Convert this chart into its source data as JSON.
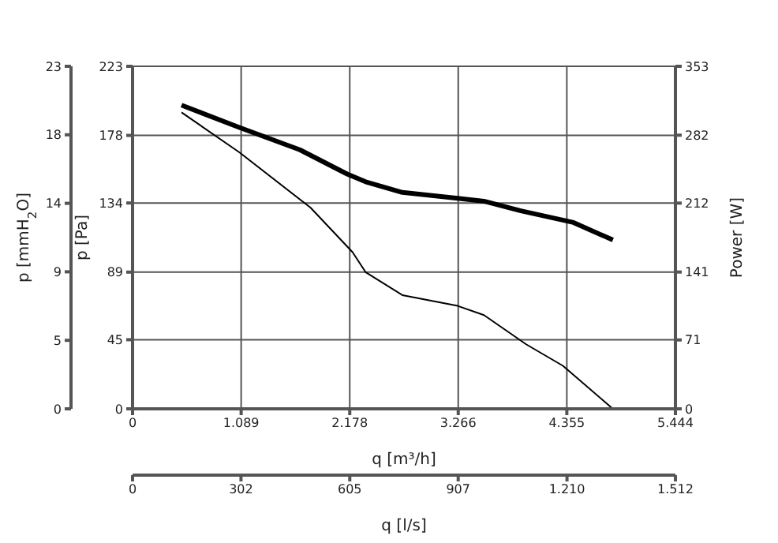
{
  "chart_data": {
    "type": "line",
    "xlabel": "q [m³/h]",
    "ylabel": "p [Pa]",
    "y2label": "p [mmH$_{2}$O]",
    "y3label": "Power [W]",
    "x2label": "q [l/s]",
    "xlim": [
      0,
      5444
    ],
    "xticks": [
      0,
      {
        "value": 1089,
        "label": "1.089"
      },
      {
        "value": 2178,
        "label": "2.178"
      },
      {
        "value": 3266,
        "label": "3.266"
      },
      {
        "value": 4355,
        "label": "4.355"
      },
      {
        "value": 5444,
        "label": "5.444"
      }
    ],
    "x2lim": [
      0,
      1512
    ],
    "x2ticks": [
      0,
      302,
      605,
      907,
      {
        "value": 1210,
        "label": "1.210"
      },
      {
        "value": 1512,
        "label": "1.512"
      }
    ],
    "ylim": [
      0,
      223
    ],
    "yticks": [
      0,
      45,
      89,
      134,
      178,
      223
    ],
    "y2lim": [
      0,
      23
    ],
    "y2ticks": [
      0,
      {
        "value": 4.6,
        "label": "5"
      },
      {
        "value": 9.2,
        "label": "9"
      },
      {
        "value": 13.8,
        "label": "14"
      },
      {
        "value": 18.4,
        "label": "18"
      },
      23
    ],
    "y3lim": [
      0,
      353
    ],
    "y3ticks": [
      0,
      71,
      141,
      212,
      282,
      353
    ],
    "grid": true,
    "legend": false,
    "marker": "none",
    "series": [
      {
        "color": "#000000",
        "x": [
          491,
          1071,
          1784,
          2206,
          2337,
          2706,
          3261,
          3524,
          3947,
          4316,
          4817
        ],
        "values": [
          193,
          167,
          131,
          102,
          89,
          74,
          67,
          61,
          42,
          28,
          0
        ]
      },
      {
        "color": "#000000",
        "axis": "y3",
        "x": [
          491,
          1071,
          1677,
          2152,
          2337,
          2706,
          3261,
          3524,
          3894,
          4422,
          4817
        ],
        "values": [
          313,
          290,
          267,
          242,
          234,
          223,
          217,
          214,
          204,
          192,
          174
        ]
      }
    ]
  }
}
